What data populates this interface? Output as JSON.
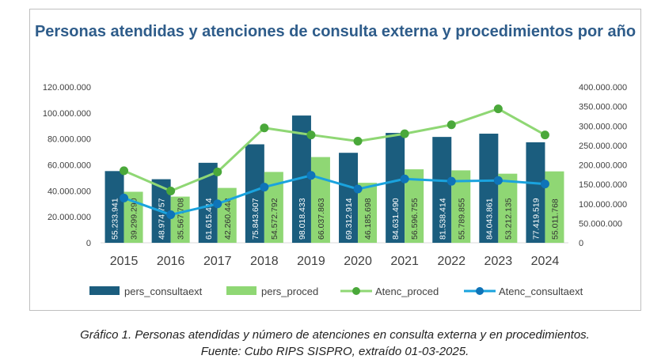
{
  "chart_data": {
    "type": "bar",
    "title": "Personas atendidas y atenciones de consulta externa y procedimientos por año",
    "categories": [
      "2015",
      "2016",
      "2017",
      "2018",
      "2019",
      "2020",
      "2021",
      "2022",
      "2023",
      "2024"
    ],
    "y_left": {
      "ylim": [
        0,
        120000000
      ],
      "ticks": [
        "0",
        "20.000.000",
        "40.000.000",
        "60.000.000",
        "80.000.000",
        "100.000.000",
        "120.000.000"
      ]
    },
    "y_right": {
      "ylim": [
        0,
        400000000
      ],
      "ticks": [
        "0",
        "50.000.000",
        "100.000.000",
        "150.000.000",
        "200.000.000",
        "250.000.000",
        "300.000.000",
        "350.000.000",
        "400.000.000"
      ]
    },
    "bar_series": [
      {
        "name": "pers_consultaext",
        "color": "#1b5d7e",
        "axis": "left",
        "values": [
          55233941,
          48974757,
          61615414,
          75843607,
          98018433,
          69312914,
          84631490,
          81538414,
          84043861,
          77419519
        ],
        "labels": [
          "55.233.941",
          "48.974.757",
          "61.615.414",
          "75.843.607",
          "98.018.433",
          "69.312.914",
          "84.631.490",
          "81.538.414",
          "84.043.861",
          "77.419.519"
        ]
      },
      {
        "name": "pers_proced",
        "color": "#8fd774",
        "axis": "left",
        "values": [
          39299290,
          35567708,
          42260448,
          54572792,
          66037863,
          46185698,
          56596755,
          55789855,
          53212135,
          55011768
        ],
        "labels": [
          "39.299.290",
          "35.567.708",
          "42.260.448",
          "54.572.792",
          "66.037.863",
          "46.185.698",
          "56.596.755",
          "55.789.855",
          "53.212.135",
          "55.011.768"
        ]
      }
    ],
    "line_series": [
      {
        "name": "Atenc_proced",
        "color": "#8fd774",
        "marker_color": "#4aa83a",
        "axis": "right",
        "values": [
          185000000,
          133000000,
          182000000,
          295000000,
          277000000,
          261000000,
          280000000,
          303000000,
          344000000,
          277000000
        ]
      },
      {
        "name": "Atenc_consultaext",
        "color": "#1aa3de",
        "marker_color": "#0f74b8",
        "axis": "right",
        "values": [
          115000000,
          72000000,
          100000000,
          143000000,
          173000000,
          138000000,
          164000000,
          158000000,
          160000000,
          151000000
        ]
      }
    ],
    "legend_position": "bottom",
    "grid": false
  },
  "caption": {
    "line1": "Gráfico 1.  Personas atendidas y número de atenciones en consulta externa y en procedimientos.",
    "line2": "Fuente: Cubo RIPS SISPRO, extraído 01-03-2025."
  }
}
